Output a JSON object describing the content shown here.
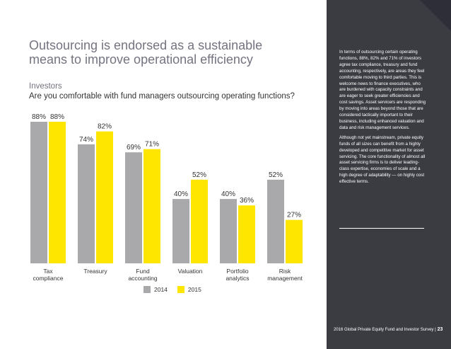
{
  "header": {
    "title": "Outsourcing is endorsed as a sustainable means to improve operational efficiency",
    "section": "Investors",
    "question": "Are you comfortable with fund managers outsourcing operating functions?"
  },
  "colors": {
    "series_2014": "#a9a9ab",
    "series_2015": "#ffe600",
    "sidebar_bg": "#3b3b42",
    "corner": "#2e2e38"
  },
  "chart_data": {
    "type": "bar",
    "categories": [
      "Tax\ncompliance",
      "Treasury",
      "Fund\naccounting",
      "Valuation",
      "Portfolio\nanalytics",
      "Risk\nmanagement"
    ],
    "series": [
      {
        "name": "2014",
        "values": [
          88,
          74,
          69,
          40,
          40,
          52
        ]
      },
      {
        "name": "2015",
        "values": [
          88,
          82,
          71,
          52,
          36,
          27
        ]
      }
    ],
    "value_suffix": "%",
    "ylim": [
      0,
      100
    ],
    "legend": "bottom-center",
    "grid": false
  },
  "sidebar": {
    "paragraph1": "In terms of outsourcing certain operating functions, 88%, 82% and 71% of investors agree tax compliance, treasury and fund accounting, respectively, are areas they feel comfortable moving to third parties. This is welcome news to finance executives, who are burdened with capacity constraints and are eager to seek greater efficiencies and cost savings. Asset servicers are responding by moving into areas beyond those that are considered tactically important to their business, including enhanced valuation and data and risk management services.",
    "paragraph2": "Although not yet mainstream, private equity funds of all sizes can benefit from a highly developed and competitive market for asset servicing. The core functionality of almost all asset servicing firms is to deliver leading-class expertise, economies of scale and a high degree of adaptability — on highly cost effective terms."
  },
  "footer": {
    "text": "2016 Global Private Equity Fund and Investor Survey |",
    "page": "23"
  }
}
